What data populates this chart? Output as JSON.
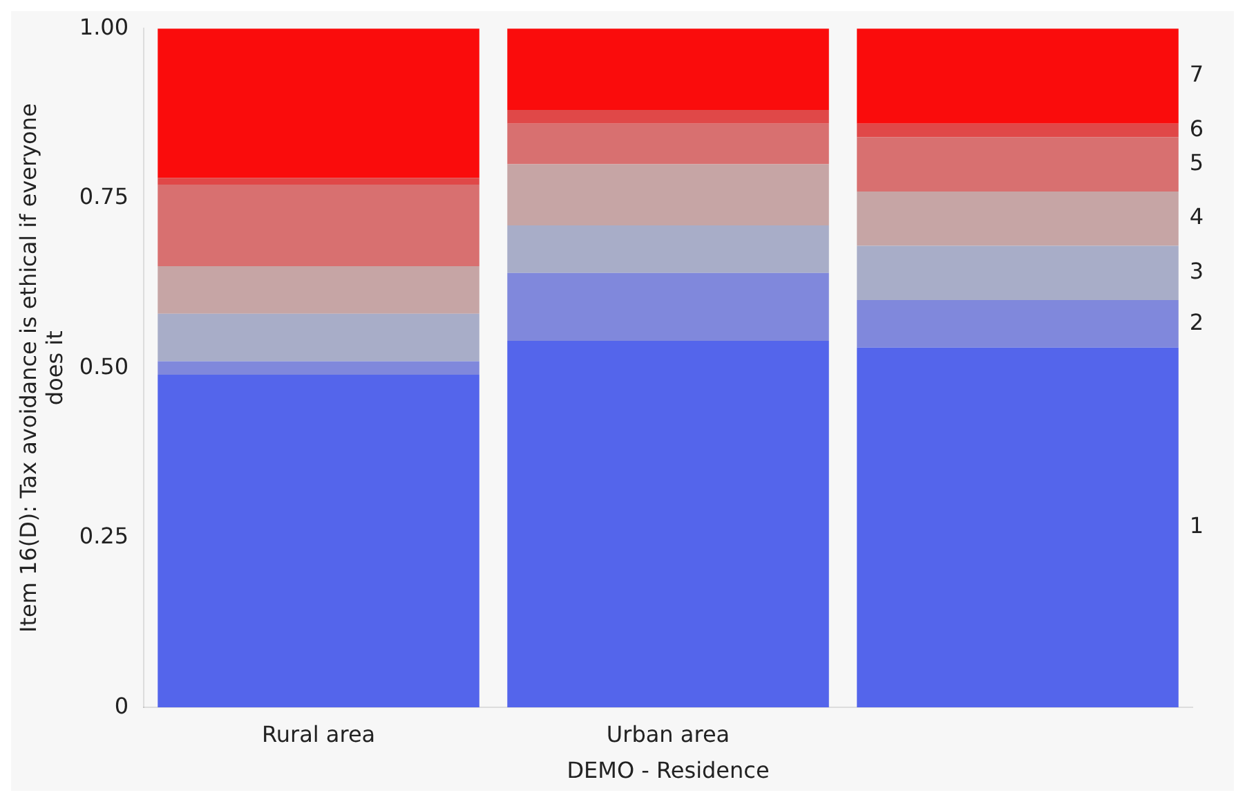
{
  "chart_data": {
    "type": "bar",
    "stacked": true,
    "xlabel": "DEMO - Residence",
    "ylabel": "Item 16(D): Tax avoidance is ethical if everyone does it",
    "categories": [
      "Rural area",
      "Urban area",
      null
    ],
    "series": [
      {
        "name": "1",
        "color": "#5465eb",
        "values": [
          0.49,
          0.54,
          0.53
        ]
      },
      {
        "name": "2",
        "color": "#8088dc",
        "values": [
          0.02,
          0.1,
          0.07
        ]
      },
      {
        "name": "3",
        "color": "#a8adc8",
        "values": [
          0.07,
          0.07,
          0.08
        ]
      },
      {
        "name": "4",
        "color": "#c6a5a5",
        "values": [
          0.07,
          0.09,
          0.08
        ]
      },
      {
        "name": "5",
        "color": "#d87070",
        "values": [
          0.12,
          0.06,
          0.08
        ]
      },
      {
        "name": "6",
        "color": "#e04848",
        "values": [
          0.01,
          0.02,
          0.02
        ]
      },
      {
        "name": "7",
        "color": "#fa0c0c",
        "values": [
          0.22,
          0.12,
          0.14
        ]
      }
    ],
    "ylim": [
      0,
      1
    ],
    "yticks": [
      0,
      {
        "value": 0.25,
        "label": "0.25"
      },
      {
        "value": 0.5,
        "label": "0.50"
      },
      {
        "value": 0.75,
        "label": "0.75"
      },
      {
        "value": 1,
        "label": "1.00"
      }
    ],
    "grid": false,
    "legend": false
  }
}
